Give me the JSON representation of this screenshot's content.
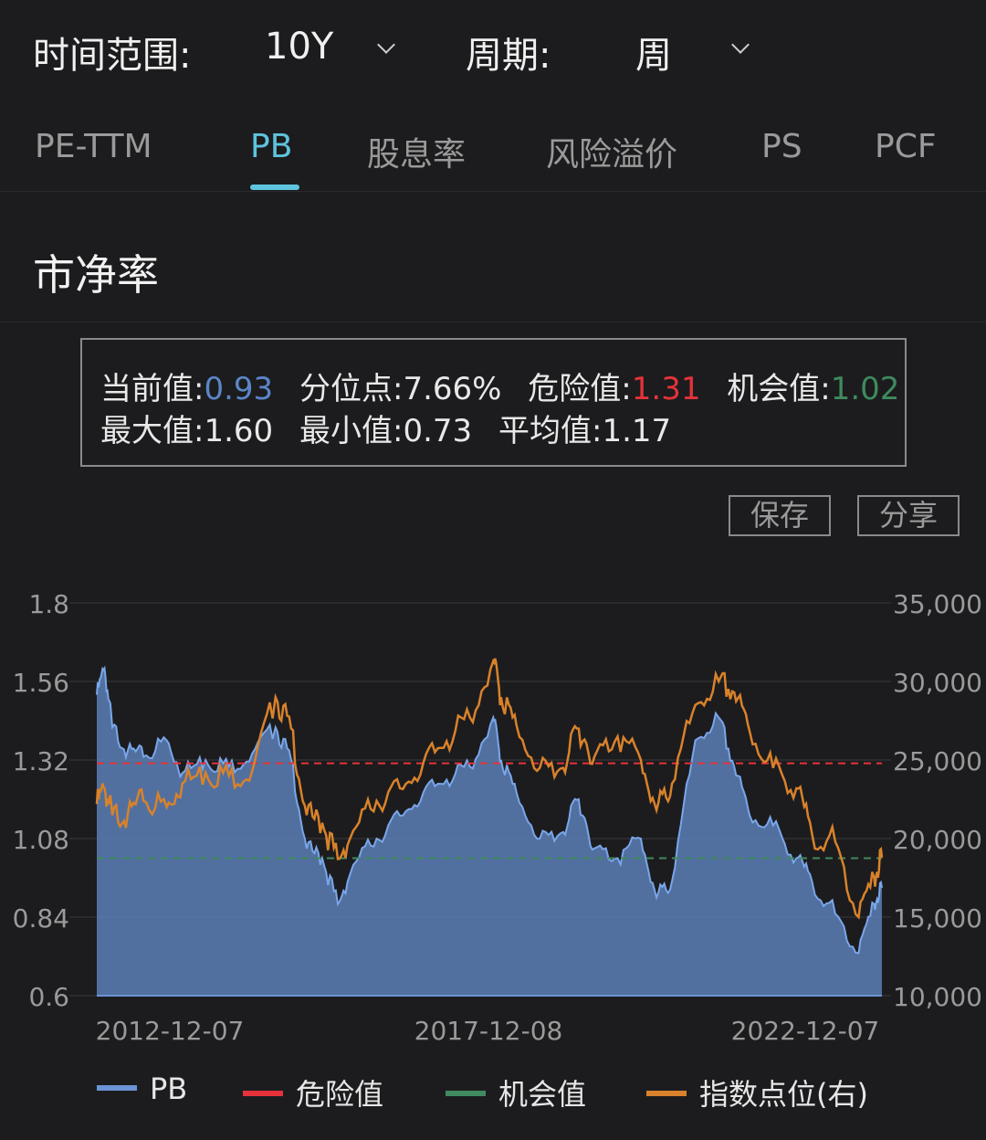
{
  "filters": {
    "range_label": "时间范围:",
    "range_value": "10Y",
    "period_label": "周期:",
    "period_value": "周"
  },
  "tabs": [
    {
      "label": "PE-TTM",
      "active": false
    },
    {
      "label": "PB",
      "active": true
    },
    {
      "label": "股息率",
      "active": false
    },
    {
      "label": "风险溢价",
      "active": false
    },
    {
      "label": "PS",
      "active": false
    },
    {
      "label": "PCF",
      "active": false
    }
  ],
  "section_title": "市净率",
  "stats": {
    "current_label": "当前值:",
    "current_value": "0.93",
    "percentile_label": "分位点:",
    "percentile_value": "7.66%",
    "danger_label": "危险值:",
    "danger_value": "1.31",
    "opportunity_label": "机会值:",
    "opportunity_value": "1.02",
    "max_label": "最大值:",
    "max_value": "1.60",
    "min_label": "最小值:",
    "min_value": "0.73",
    "avg_label": "平均值:",
    "avg_value": "1.17"
  },
  "buttons": {
    "save": "保存",
    "share": "分享"
  },
  "colors": {
    "accent": "#5ec3dd",
    "pb": "#6b94d6",
    "danger": "#e5323a",
    "opportunity": "#3f8a5e",
    "index": "#d9822b"
  },
  "chart_data": {
    "type": "area",
    "x_ticks": [
      "2012-12-07",
      "2017-12-08",
      "2022-12-07"
    ],
    "y_left": {
      "ticks": [
        "1.8",
        "1.56",
        "1.32",
        "1.08",
        "0.84",
        "0.6"
      ],
      "min": 0.6,
      "max": 1.8
    },
    "y_right": {
      "ticks": [
        "35,000",
        "30,000",
        "25,000",
        "20,000",
        "15,000",
        "10,000"
      ],
      "min": 10000,
      "max": 35000
    },
    "series": [
      {
        "name": "PB",
        "type": "area",
        "axis": "left",
        "x": [
          2012.9,
          2013.0,
          2013.1,
          2013.3,
          2013.5,
          2013.8,
          2014.0,
          2014.3,
          2014.6,
          2014.9,
          2015.2,
          2015.4,
          2015.6,
          2015.8,
          2016.0,
          2016.2,
          2016.5,
          2016.8,
          2017.1,
          2017.4,
          2017.7,
          2018.0,
          2018.1,
          2018.3,
          2018.6,
          2018.9,
          2019.1,
          2019.3,
          2019.6,
          2019.9,
          2020.1,
          2020.3,
          2020.6,
          2020.9,
          2021.1,
          2021.3,
          2021.6,
          2021.9,
          2022.1,
          2022.4,
          2022.7,
          2022.9,
          2023.0
        ],
        "values": [
          1.52,
          1.6,
          1.42,
          1.35,
          1.33,
          1.38,
          1.28,
          1.32,
          1.3,
          1.34,
          1.42,
          1.32,
          1.05,
          1.02,
          0.88,
          1.0,
          1.08,
          1.15,
          1.22,
          1.26,
          1.3,
          1.45,
          1.32,
          1.22,
          1.08,
          1.1,
          1.2,
          1.05,
          1.02,
          1.08,
          0.9,
          0.95,
          1.38,
          1.45,
          1.3,
          1.15,
          1.12,
          1.02,
          0.95,
          0.85,
          0.73,
          0.88,
          0.93
        ]
      },
      {
        "name": "危险值",
        "type": "hline",
        "axis": "left",
        "value": 1.31
      },
      {
        "name": "机会值",
        "type": "hline",
        "axis": "left",
        "value": 1.02
      },
      {
        "name": "指数点位(右)",
        "type": "line",
        "axis": "right",
        "x": [
          2012.9,
          2013.0,
          2013.1,
          2013.3,
          2013.5,
          2013.8,
          2014.0,
          2014.3,
          2014.6,
          2014.9,
          2015.2,
          2015.4,
          2015.6,
          2015.8,
          2016.0,
          2016.2,
          2016.5,
          2016.8,
          2017.1,
          2017.4,
          2017.7,
          2018.0,
          2018.1,
          2018.3,
          2018.6,
          2018.9,
          2019.1,
          2019.3,
          2019.6,
          2019.9,
          2020.1,
          2020.3,
          2020.6,
          2020.9,
          2021.1,
          2021.3,
          2021.6,
          2021.9,
          2022.1,
          2022.4,
          2022.7,
          2022.9,
          2023.0
        ],
        "values": [
          22200,
          23200,
          21500,
          21600,
          22400,
          22000,
          23500,
          24200,
          24000,
          24300,
          29000,
          27000,
          21500,
          21000,
          18700,
          20500,
          22400,
          23200,
          24800,
          26200,
          27700,
          31300,
          29000,
          27200,
          24500,
          24500,
          27000,
          25200,
          26500,
          25000,
          21800,
          23500,
          28500,
          30000,
          29300,
          26800,
          24500,
          23200,
          20300,
          19800,
          15000,
          17500,
          18800
        ]
      }
    ],
    "legend": [
      "PB",
      "危险值",
      "机会值",
      "指数点位(右)"
    ]
  }
}
